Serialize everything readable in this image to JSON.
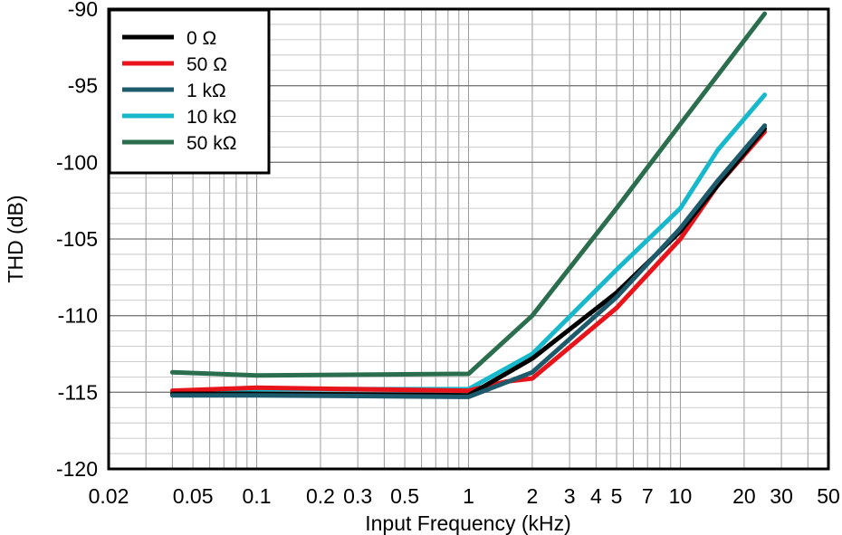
{
  "chart_data": {
    "type": "line",
    "title": "",
    "xlabel": "Input Frequency (kHz)",
    "ylabel": "THD (dB)",
    "xscale": "log",
    "xlim": [
      0.02,
      50
    ],
    "ylim": [
      -120,
      -90
    ],
    "grid": true,
    "legend_position": "top-left",
    "x_ticks": [
      {
        "value": 0.02,
        "label": "0.02"
      },
      {
        "value": 0.05,
        "label": "0.05"
      },
      {
        "value": 0.1,
        "label": "0.1"
      },
      {
        "value": 0.2,
        "label": "0.2"
      },
      {
        "value": 0.3,
        "label": "0.3"
      },
      {
        "value": 0.5,
        "label": "0.5"
      },
      {
        "value": 1,
        "label": "1"
      },
      {
        "value": 2,
        "label": "2"
      },
      {
        "value": 3,
        "label": "3"
      },
      {
        "value": 4,
        "label": "4"
      },
      {
        "value": 5,
        "label": "5"
      },
      {
        "value": 7,
        "label": "7"
      },
      {
        "value": 10,
        "label": "10"
      },
      {
        "value": 20,
        "label": "20"
      },
      {
        "value": 30,
        "label": "30"
      },
      {
        "value": 50,
        "label": "50"
      }
    ],
    "y_ticks": [
      {
        "value": -90,
        "label": "-90"
      },
      {
        "value": -95,
        "label": "-95"
      },
      {
        "value": -100,
        "label": "-100"
      },
      {
        "value": -105,
        "label": "-105"
      },
      {
        "value": -110,
        "label": "-110"
      },
      {
        "value": -115,
        "label": "-115"
      },
      {
        "value": -120,
        "label": "-120"
      }
    ],
    "series": [
      {
        "name": "0 Ω",
        "color": "#000000",
        "x": [
          0.04,
          0.1,
          1,
          2,
          5,
          10,
          15,
          25
        ],
        "y": [
          -115.1,
          -115.1,
          -115.2,
          -112.8,
          -108.5,
          -104.5,
          -101.5,
          -97.8
        ]
      },
      {
        "name": "50 Ω",
        "color": "#e8141b",
        "x": [
          0.04,
          0.1,
          1,
          1.5,
          2,
          5,
          10,
          15,
          25
        ],
        "y": [
          -114.9,
          -114.7,
          -114.9,
          -114.3,
          -114.1,
          -109.5,
          -105.0,
          -101.5,
          -98.0
        ]
      },
      {
        "name": "1 kΩ",
        "color": "#1c5a6c",
        "x": [
          0.04,
          0.1,
          1,
          2,
          5,
          10,
          15,
          25
        ],
        "y": [
          -115.2,
          -115.2,
          -115.3,
          -113.7,
          -108.8,
          -104.3,
          -101.2,
          -97.6
        ]
      },
      {
        "name": "10 kΩ",
        "color": "#18b8cc",
        "x": [
          0.04,
          0.1,
          1,
          2,
          5,
          10,
          15,
          25
        ],
        "y": [
          -114.9,
          -114.8,
          -114.8,
          -112.5,
          -107.0,
          -103.0,
          -99.2,
          -95.6
        ]
      },
      {
        "name": "50 kΩ",
        "color": "#2b6e4e",
        "x": [
          0.04,
          0.1,
          1,
          2,
          5,
          10,
          25
        ],
        "y": [
          -113.7,
          -113.9,
          -113.8,
          -110.0,
          -103.0,
          -97.5,
          -90.3
        ]
      }
    ]
  }
}
